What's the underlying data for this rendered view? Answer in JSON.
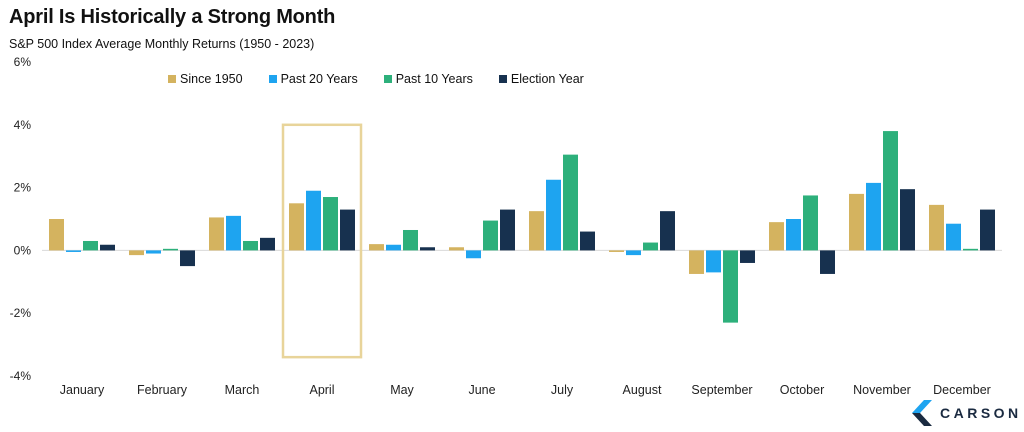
{
  "title": "April Is Historically a Strong Month",
  "subtitle": "S&P 500 Index Average Monthly Returns (1950 - 2023)",
  "logo": {
    "text": "CARSON",
    "icon": "carson-c-logo"
  },
  "highlight": {
    "category": "April",
    "color": "#e8d49a"
  },
  "chart_data": {
    "type": "bar",
    "categories": [
      "January",
      "February",
      "March",
      "April",
      "May",
      "June",
      "July",
      "August",
      "September",
      "October",
      "November",
      "December"
    ],
    "series": [
      {
        "name": "Since 1950",
        "color": "#d4b35f",
        "values": [
          1.0,
          -0.15,
          1.05,
          1.5,
          0.2,
          0.1,
          1.25,
          -0.05,
          -0.75,
          0.9,
          1.8,
          1.45
        ]
      },
      {
        "name": "Past 20 Years",
        "color": "#1ea4f0",
        "values": [
          -0.05,
          -0.1,
          1.1,
          1.9,
          0.18,
          -0.25,
          2.25,
          -0.15,
          -0.7,
          1.0,
          2.15,
          0.85
        ]
      },
      {
        "name": "Past 10 Years",
        "color": "#2db07b",
        "values": [
          0.3,
          0.05,
          0.3,
          1.7,
          0.65,
          0.95,
          3.05,
          0.25,
          -2.3,
          1.75,
          3.8,
          0.05
        ]
      },
      {
        "name": "Election Year",
        "color": "#17314f",
        "values": [
          0.18,
          -0.5,
          0.4,
          1.3,
          0.1,
          1.3,
          0.6,
          1.25,
          -0.4,
          -0.75,
          1.95,
          1.3
        ]
      }
    ],
    "ylim": [
      -4,
      6
    ],
    "yticks": [
      "-4%",
      "-2%",
      "0%",
      "2%",
      "4%",
      "6%"
    ],
    "ytick_values": [
      -4,
      -2,
      0,
      2,
      4,
      6
    ],
    "legend_position": "top",
    "grid": false
  }
}
